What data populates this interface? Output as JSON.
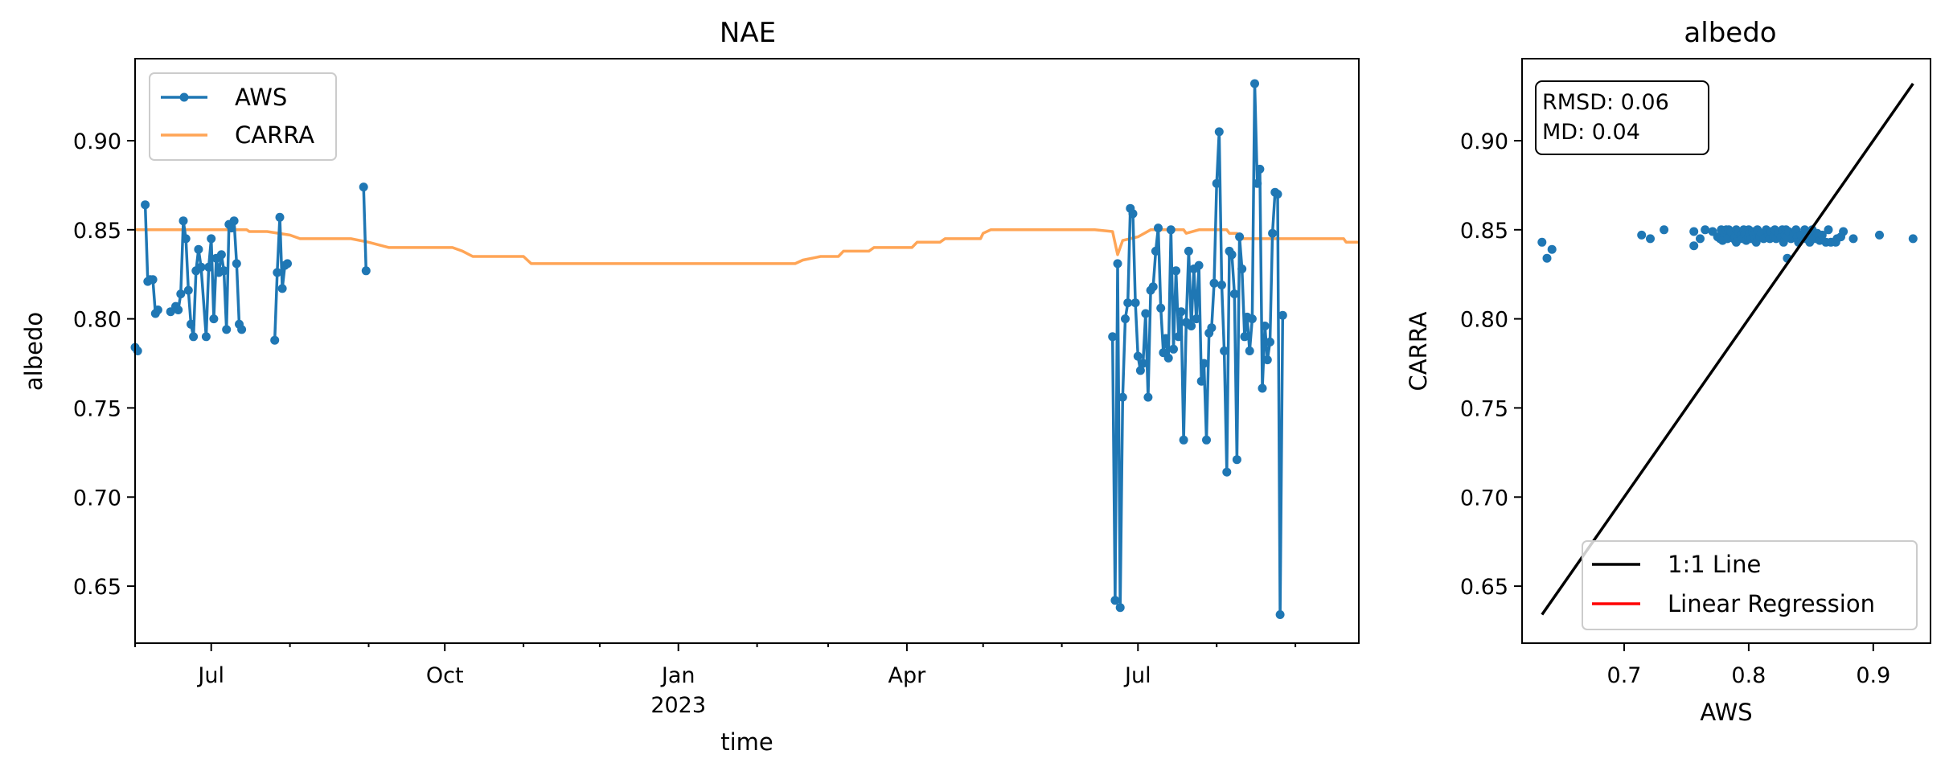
{
  "chart_data": [
    {
      "type": "line",
      "title": "NAE",
      "xlabel": "time",
      "ylabel": "albedo",
      "x_tick_labels": [
        "Jul",
        "Oct",
        "Jan",
        "Apr",
        "Jul"
      ],
      "x_tick_dates": [
        "2022-07-01",
        "2022-10-01",
        "2023-01-01",
        "2023-04-01",
        "2023-07-01"
      ],
      "year_label": "2023",
      "xlim": [
        "2022-06-01",
        "2023-09-26"
      ],
      "ylim": [
        0.618,
        0.946
      ],
      "y_ticks": [
        0.65,
        0.7,
        0.75,
        0.8,
        0.85,
        0.9
      ],
      "y_tick_labels": [
        "0.65",
        "0.70",
        "0.75",
        "0.80",
        "0.85",
        "0.90"
      ],
      "legend_position": "upper-left",
      "series": [
        {
          "name": "AWS",
          "color": "#1f77b4",
          "marker": "circle",
          "segments": [
            [
              [
                "2022-06-01",
                0.784
              ],
              [
                "2022-06-02",
                0.782
              ]
            ],
            [
              [
                "2022-06-05",
                0.864
              ],
              [
                "2022-06-06",
                0.821
              ],
              [
                "2022-06-07",
                0.822
              ],
              [
                "2022-06-08",
                0.822
              ],
              [
                "2022-06-09",
                0.803
              ],
              [
                "2022-06-10",
                0.805
              ]
            ],
            [
              [
                "2022-06-15",
                0.804
              ],
              [
                "2022-06-17",
                0.807
              ],
              [
                "2022-06-18",
                0.805
              ],
              [
                "2022-06-19",
                0.814
              ],
              [
                "2022-06-20",
                0.855
              ],
              [
                "2022-06-21",
                0.845
              ],
              [
                "2022-06-22",
                0.816
              ],
              [
                "2022-06-23",
                0.797
              ],
              [
                "2022-06-24",
                0.79
              ],
              [
                "2022-06-25",
                0.827
              ],
              [
                "2022-06-26",
                0.839
              ],
              [
                "2022-06-27",
                0.829
              ],
              [
                "2022-06-29",
                0.79
              ],
              [
                "2022-06-30",
                0.829
              ],
              [
                "2022-07-01",
                0.845
              ],
              [
                "2022-07-02",
                0.8
              ],
              [
                "2022-07-03",
                0.834
              ],
              [
                "2022-07-04",
                0.826
              ],
              [
                "2022-07-05",
                0.836
              ],
              [
                "2022-07-06",
                0.827
              ],
              [
                "2022-07-07",
                0.794
              ],
              [
                "2022-07-08",
                0.853
              ],
              [
                "2022-07-09",
                0.851
              ],
              [
                "2022-07-10",
                0.855
              ],
              [
                "2022-07-11",
                0.831
              ],
              [
                "2022-07-12",
                0.797
              ],
              [
                "2022-07-13",
                0.794
              ]
            ],
            [
              [
                "2022-07-26",
                0.788
              ],
              [
                "2022-07-27",
                0.826
              ],
              [
                "2022-07-28",
                0.857
              ],
              [
                "2022-07-29",
                0.817
              ],
              [
                "2022-07-30",
                0.83
              ],
              [
                "2022-07-31",
                0.831
              ]
            ],
            [
              [
                "2022-08-30",
                0.874
              ],
              [
                "2022-08-31",
                0.827
              ]
            ],
            [
              [
                "2023-06-21",
                0.79
              ],
              [
                "2023-06-22",
                0.642
              ],
              [
                "2023-06-23",
                0.831
              ],
              [
                "2023-06-24",
                0.638
              ],
              [
                "2023-06-25",
                0.756
              ],
              [
                "2023-06-26",
                0.8
              ],
              [
                "2023-06-27",
                0.809
              ],
              [
                "2023-06-28",
                0.862
              ],
              [
                "2023-06-29",
                0.859
              ],
              [
                "2023-06-30",
                0.809
              ],
              [
                "2023-07-01",
                0.779
              ],
              [
                "2023-07-02",
                0.771
              ],
              [
                "2023-07-03",
                0.775
              ],
              [
                "2023-07-04",
                0.803
              ],
              [
                "2023-07-05",
                0.756
              ],
              [
                "2023-07-06",
                0.816
              ],
              [
                "2023-07-07",
                0.818
              ],
              [
                "2023-07-08",
                0.838
              ],
              [
                "2023-07-09",
                0.851
              ],
              [
                "2023-07-10",
                0.806
              ],
              [
                "2023-07-11",
                0.781
              ],
              [
                "2023-07-12",
                0.789
              ],
              [
                "2023-07-13",
                0.778
              ],
              [
                "2023-07-14",
                0.85
              ],
              [
                "2023-07-15",
                0.783
              ],
              [
                "2023-07-16",
                0.827
              ],
              [
                "2023-07-17",
                0.79
              ],
              [
                "2023-07-18",
                0.804
              ],
              [
                "2023-07-19",
                0.732
              ],
              [
                "2023-07-20",
                0.798
              ],
              [
                "2023-07-21",
                0.838
              ],
              [
                "2023-07-22",
                0.796
              ],
              [
                "2023-07-23",
                0.828
              ],
              [
                "2023-07-24",
                0.8
              ],
              [
                "2023-07-25",
                0.83
              ],
              [
                "2023-07-26",
                0.765
              ],
              [
                "2023-07-27",
                0.775
              ],
              [
                "2023-07-28",
                0.732
              ],
              [
                "2023-07-29",
                0.792
              ],
              [
                "2023-07-30",
                0.795
              ],
              [
                "2023-07-31",
                0.82
              ],
              [
                "2023-08-01",
                0.876
              ],
              [
                "2023-08-02",
                0.905
              ],
              [
                "2023-08-03",
                0.819
              ],
              [
                "2023-08-04",
                0.782
              ],
              [
                "2023-08-05",
                0.714
              ],
              [
                "2023-08-06",
                0.838
              ],
              [
                "2023-08-07",
                0.836
              ],
              [
                "2023-08-08",
                0.814
              ],
              [
                "2023-08-09",
                0.721
              ],
              [
                "2023-08-10",
                0.846
              ],
              [
                "2023-08-11",
                0.828
              ],
              [
                "2023-08-12",
                0.79
              ],
              [
                "2023-08-13",
                0.801
              ],
              [
                "2023-08-14",
                0.782
              ],
              [
                "2023-08-15",
                0.8
              ],
              [
                "2023-08-16",
                0.932
              ],
              [
                "2023-08-17",
                0.876
              ],
              [
                "2023-08-18",
                0.884
              ],
              [
                "2023-08-19",
                0.761
              ],
              [
                "2023-08-20",
                0.796
              ],
              [
                "2023-08-21",
                0.777
              ],
              [
                "2023-08-22",
                0.787
              ],
              [
                "2023-08-23",
                0.848
              ],
              [
                "2023-08-24",
                0.871
              ],
              [
                "2023-08-25",
                0.87
              ],
              [
                "2023-08-26",
                0.634
              ],
              [
                "2023-08-27",
                0.802
              ]
            ]
          ]
        },
        {
          "name": "CARRA",
          "color": "#ff7f0e",
          "opacity": 0.7,
          "points": [
            [
              "2022-06-01",
              0.85
            ],
            [
              "2022-07-15",
              0.85
            ],
            [
              "2022-07-16",
              0.849
            ],
            [
              "2022-07-23",
              0.849
            ],
            [
              "2022-08-01",
              0.847
            ],
            [
              "2022-08-05",
              0.845
            ],
            [
              "2022-08-25",
              0.845
            ],
            [
              "2022-09-01",
              0.843
            ],
            [
              "2022-09-09",
              0.84
            ],
            [
              "2022-10-04",
              0.84
            ],
            [
              "2022-10-08",
              0.838
            ],
            [
              "2022-10-12",
              0.835
            ],
            [
              "2022-11-01",
              0.835
            ],
            [
              "2022-11-04",
              0.831
            ],
            [
              "2023-02-16",
              0.831
            ],
            [
              "2023-02-19",
              0.833
            ],
            [
              "2023-02-26",
              0.835
            ],
            [
              "2023-03-05",
              0.835
            ],
            [
              "2023-03-07",
              0.838
            ],
            [
              "2023-03-17",
              0.838
            ],
            [
              "2023-03-19",
              0.84
            ],
            [
              "2023-04-03",
              0.84
            ],
            [
              "2023-04-05",
              0.843
            ],
            [
              "2023-04-14",
              0.843
            ],
            [
              "2023-04-16",
              0.845
            ],
            [
              "2023-04-30",
              0.845
            ],
            [
              "2023-05-01",
              0.848
            ],
            [
              "2023-05-04",
              0.85
            ],
            [
              "2023-06-14",
              0.85
            ],
            [
              "2023-06-21",
              0.849
            ],
            [
              "2023-06-23",
              0.836
            ],
            [
              "2023-06-25",
              0.844
            ],
            [
              "2023-07-01",
              0.846
            ],
            [
              "2023-07-06",
              0.85
            ],
            [
              "2023-07-19",
              0.85
            ],
            [
              "2023-07-20",
              0.848
            ],
            [
              "2023-07-25",
              0.85
            ],
            [
              "2023-08-05",
              0.85
            ],
            [
              "2023-08-06",
              0.848
            ],
            [
              "2023-08-09",
              0.848
            ],
            [
              "2023-08-10",
              0.845
            ],
            [
              "2023-09-20",
              0.845
            ],
            [
              "2023-09-21",
              0.843
            ],
            [
              "2023-09-26",
              0.843
            ]
          ]
        }
      ]
    },
    {
      "type": "scatter",
      "title": "albedo",
      "xlabel": "AWS",
      "ylabel": "CARRA",
      "xlim": [
        0.618,
        0.946
      ],
      "ylim": [
        0.618,
        0.946
      ],
      "x_ticks": [
        0.7,
        0.8,
        0.9
      ],
      "x_tick_labels": [
        "0.7",
        "0.8",
        "0.9"
      ],
      "y_ticks": [
        0.65,
        0.7,
        0.75,
        0.8,
        0.85,
        0.9
      ],
      "y_tick_labels": [
        "0.65",
        "0.70",
        "0.75",
        "0.80",
        "0.85",
        "0.90"
      ],
      "stats_text": [
        "RMSD: 0.06",
        "MD: 0.04"
      ],
      "legend_position": "lower-right",
      "points_color": "#1f77b4",
      "points": [
        [
          0.634,
          0.843
        ],
        [
          0.638,
          0.834
        ],
        [
          0.642,
          0.839
        ],
        [
          0.714,
          0.847
        ],
        [
          0.721,
          0.845
        ],
        [
          0.732,
          0.85
        ],
        [
          0.756,
          0.849
        ],
        [
          0.756,
          0.841
        ],
        [
          0.761,
          0.845
        ],
        [
          0.765,
          0.85
        ],
        [
          0.771,
          0.849
        ],
        [
          0.775,
          0.846
        ],
        [
          0.777,
          0.845
        ],
        [
          0.778,
          0.85
        ],
        [
          0.779,
          0.844
        ],
        [
          0.781,
          0.848
        ],
        [
          0.782,
          0.85
        ],
        [
          0.783,
          0.845
        ],
        [
          0.784,
          0.85
        ],
        [
          0.786,
          0.849
        ],
        [
          0.788,
          0.845
        ],
        [
          0.789,
          0.846
        ],
        [
          0.79,
          0.843
        ],
        [
          0.79,
          0.85
        ],
        [
          0.792,
          0.849
        ],
        [
          0.794,
          0.847
        ],
        [
          0.795,
          0.845
        ],
        [
          0.796,
          0.85
        ],
        [
          0.797,
          0.848
        ],
        [
          0.798,
          0.844
        ],
        [
          0.8,
          0.846
        ],
        [
          0.8,
          0.85
        ],
        [
          0.801,
          0.848
        ],
        [
          0.802,
          0.845
        ],
        [
          0.803,
          0.849
        ],
        [
          0.804,
          0.847
        ],
        [
          0.805,
          0.845
        ],
        [
          0.806,
          0.843
        ],
        [
          0.807,
          0.85
        ],
        [
          0.809,
          0.846
        ],
        [
          0.81,
          0.848
        ],
        [
          0.812,
          0.845
        ],
        [
          0.814,
          0.85
        ],
        [
          0.816,
          0.847
        ],
        [
          0.817,
          0.845
        ],
        [
          0.818,
          0.849
        ],
        [
          0.82,
          0.846
        ],
        [
          0.821,
          0.85
        ],
        [
          0.822,
          0.845
        ],
        [
          0.824,
          0.848
        ],
        [
          0.826,
          0.846
        ],
        [
          0.827,
          0.85
        ],
        [
          0.828,
          0.843
        ],
        [
          0.829,
          0.847
        ],
        [
          0.83,
          0.85
        ],
        [
          0.831,
          0.834
        ],
        [
          0.831,
          0.846
        ],
        [
          0.832,
          0.849
        ],
        [
          0.834,
          0.845
        ],
        [
          0.836,
          0.848
        ],
        [
          0.838,
          0.85
        ],
        [
          0.839,
          0.846
        ],
        [
          0.84,
          0.843
        ],
        [
          0.842,
          0.847
        ],
        [
          0.845,
          0.85
        ],
        [
          0.846,
          0.845
        ],
        [
          0.848,
          0.848
        ],
        [
          0.849,
          0.843
        ],
        [
          0.85,
          0.847
        ],
        [
          0.851,
          0.85
        ],
        [
          0.853,
          0.845
        ],
        [
          0.855,
          0.848
        ],
        [
          0.857,
          0.844
        ],
        [
          0.859,
          0.847
        ],
        [
          0.862,
          0.843
        ],
        [
          0.864,
          0.85
        ],
        [
          0.866,
          0.843
        ],
        [
          0.87,
          0.843
        ],
        [
          0.871,
          0.845
        ],
        [
          0.874,
          0.846
        ],
        [
          0.876,
          0.849
        ],
        [
          0.884,
          0.845
        ],
        [
          0.905,
          0.847
        ],
        [
          0.932,
          0.845
        ]
      ],
      "series": [
        {
          "name": "1:1 Line",
          "color": "#000000",
          "points": [
            [
              0.634,
              0.634
            ],
            [
              0.932,
              0.932
            ]
          ]
        },
        {
          "name": "Linear Regression",
          "color": "#ff0000"
        }
      ]
    }
  ]
}
